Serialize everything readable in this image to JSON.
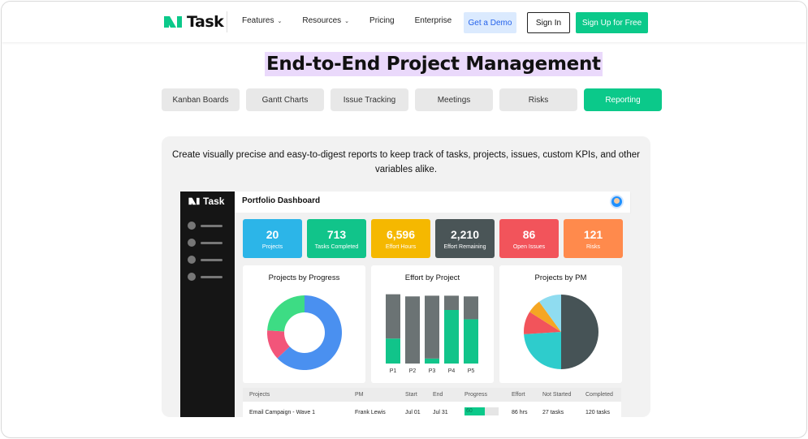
{
  "brand": {
    "name": "Task"
  },
  "nav": {
    "links": [
      {
        "label": "Features",
        "dropdown": true
      },
      {
        "label": "Resources",
        "dropdown": true
      },
      {
        "label": "Pricing",
        "dropdown": false
      },
      {
        "label": "Enterprise",
        "dropdown": false
      }
    ],
    "demo_label": "Get a Demo",
    "signin_label": "Sign In",
    "signup_label": "Sign Up for Free"
  },
  "hero": {
    "title": "End-to-End Project Management"
  },
  "tabs": [
    {
      "label": "Kanban Boards",
      "active": false
    },
    {
      "label": "Gantt Charts",
      "active": false
    },
    {
      "label": "Issue Tracking",
      "active": false
    },
    {
      "label": "Meetings",
      "active": false
    },
    {
      "label": "Risks",
      "active": false
    },
    {
      "label": "Reporting",
      "active": true
    }
  ],
  "panel": {
    "description": "Create visually precise and easy-to-digest reports to keep track of tasks, projects, issues, custom KPIs, and other variables alike."
  },
  "dashboard": {
    "logo_text": "Task",
    "title": "Portfolio Dashboard",
    "kpis": [
      {
        "value": "20",
        "label": "Projects",
        "color": "#2cb5e8"
      },
      {
        "value": "713",
        "label": "Tasks Completed",
        "color": "#11c48a"
      },
      {
        "value": "6,596",
        "label": "Effort Hours",
        "color": "#f5b800"
      },
      {
        "value": "2,210",
        "label": "Effort Remaining",
        "color": "#4a5557"
      },
      {
        "value": "86",
        "label": "Open Issues",
        "color": "#f2545b"
      },
      {
        "value": "121",
        "label": "Risks",
        "color": "#ff8a4c"
      }
    ],
    "cards": {
      "progress_title": "Projects by Progress",
      "effort_title": "Effort by Project",
      "pm_title": "Projects by PM"
    },
    "table": {
      "headers": [
        "Projects",
        "PM",
        "Start",
        "End",
        "Progress",
        "Effort",
        "Not Started",
        "Completed"
      ],
      "rows": [
        {
          "project": "Email Campaign  - Wave 1",
          "pm": "Frank Lewis",
          "start": "Jul 01",
          "end": "Jul 31",
          "progress": "60",
          "progress_value": 0.6,
          "effort": "86 hrs",
          "not_started": "27 tasks",
          "completed": "120 tasks"
        }
      ]
    }
  },
  "chart_data": [
    {
      "type": "pie",
      "title": "Projects by Progress",
      "donut": true,
      "values": [
        63,
        13,
        24
      ],
      "colors": [
        "#4a90f0",
        "#f2557a",
        "#3ddc84"
      ]
    },
    {
      "type": "bar",
      "title": "Effort by Project",
      "stacked": true,
      "categories": [
        "P1",
        "P2",
        "P3",
        "P4",
        "P5"
      ],
      "series": [
        {
          "values": [
            35,
            0,
            7,
            75,
            62
          ],
          "color": "#11c48a"
        },
        {
          "values": [
            62,
            94,
            88,
            20,
            32
          ],
          "color": "#6b7374"
        }
      ]
    },
    {
      "type": "pie",
      "title": "Projects by PM",
      "values": [
        50,
        24,
        10,
        6,
        10
      ],
      "colors": [
        "#465356",
        "#2ecccc",
        "#f2545b",
        "#f5a623",
        "#8fdcf0"
      ]
    }
  ]
}
